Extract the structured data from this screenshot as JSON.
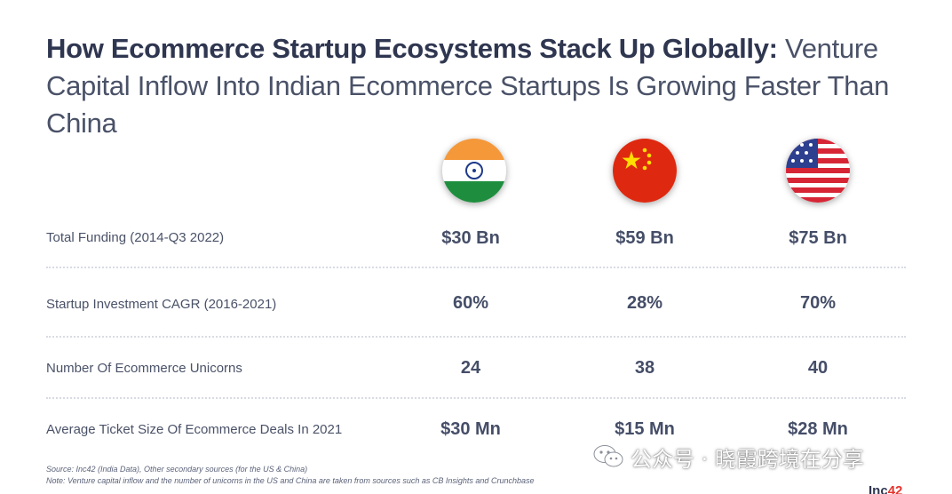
{
  "title": {
    "bold": "How Ecommerce Startup Ecosystems Stack Up Globally:",
    "light": "Venture Capital Inflow Into Indian Ecommerce Startups Is Growing Faster Than China"
  },
  "chart_data": {
    "type": "table",
    "columns": [
      "India",
      "China",
      "US"
    ],
    "rows": [
      {
        "label": "Total Funding (2014-Q3 2022)",
        "values": [
          "$30 Bn",
          "$59 Bn",
          "$75 Bn"
        ]
      },
      {
        "label": "Startup Investment CAGR (2016-2021)",
        "values": [
          "60%",
          "28%",
          "70%"
        ]
      },
      {
        "label": "Number Of Ecommerce Unicorns",
        "values": [
          "24",
          "38",
          "40"
        ]
      },
      {
        "label": "Average Ticket Size Of Ecommerce Deals In 2021",
        "values": [
          "$30 Mn",
          "$15 Mn",
          "$28 Mn"
        ]
      }
    ]
  },
  "flags": [
    {
      "icon": "india-flag-icon"
    },
    {
      "icon": "china-flag-icon"
    },
    {
      "icon": "usa-flag-icon"
    }
  ],
  "notes": {
    "source": "Source: Inc42 (India Data), Other secondary sources (for the US & China)",
    "note": "Note: Venture capital inflow and the number of unicorns in the US and China are taken from sources such as CB Insights and Crunchbase"
  },
  "watermark": {
    "icon": "wechat-icon",
    "text": "公众号 · 晓霞跨境在分享"
  },
  "logo": {
    "main": "Inc",
    "accent": "42"
  },
  "colors": {
    "text": "#454e68",
    "india_saffron": "#f4983a",
    "india_green": "#1e8e3e",
    "china_red": "#de2910",
    "china_star": "#ffde00",
    "us_red": "#d62636",
    "us_blue": "#2d3f8f"
  }
}
